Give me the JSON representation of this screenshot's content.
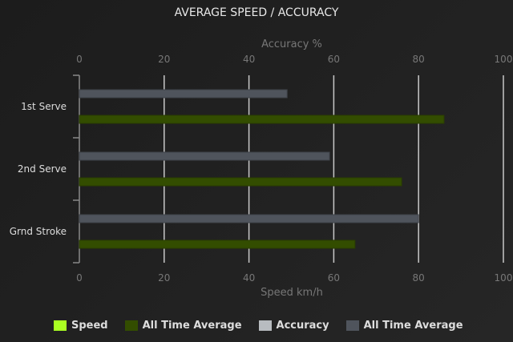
{
  "chart_data": {
    "type": "bar",
    "orientation": "horizontal",
    "title": "AVERAGE SPEED / ACCURACY",
    "categories": [
      "1st Serve",
      "2nd Serve",
      "Grnd Stroke"
    ],
    "top_axis": {
      "label": "Accuracy %",
      "range": [
        0,
        100
      ],
      "ticks": [
        "0",
        "20",
        "40",
        "60",
        "80",
        "100"
      ]
    },
    "bottom_axis": {
      "label": "Speed km/h",
      "range": [
        0,
        100
      ],
      "ticks": [
        "0",
        "20",
        "40",
        "60",
        "80",
        "100"
      ]
    },
    "grid": true,
    "legend_position": "bottom",
    "series": [
      {
        "name": "Speed",
        "color": "#aaff22",
        "values": [
          null,
          null,
          null
        ]
      },
      {
        "name": "All Time Average",
        "color": "#334d00",
        "axis": "speed",
        "values": [
          86,
          76,
          65
        ]
      },
      {
        "name": "Accuracy",
        "color": "#b8bcc0",
        "values": [
          null,
          null,
          null
        ]
      },
      {
        "name": "All Time Average",
        "color": "#4f545c",
        "axis": "accuracy",
        "values": [
          49,
          59,
          80
        ]
      }
    ]
  }
}
